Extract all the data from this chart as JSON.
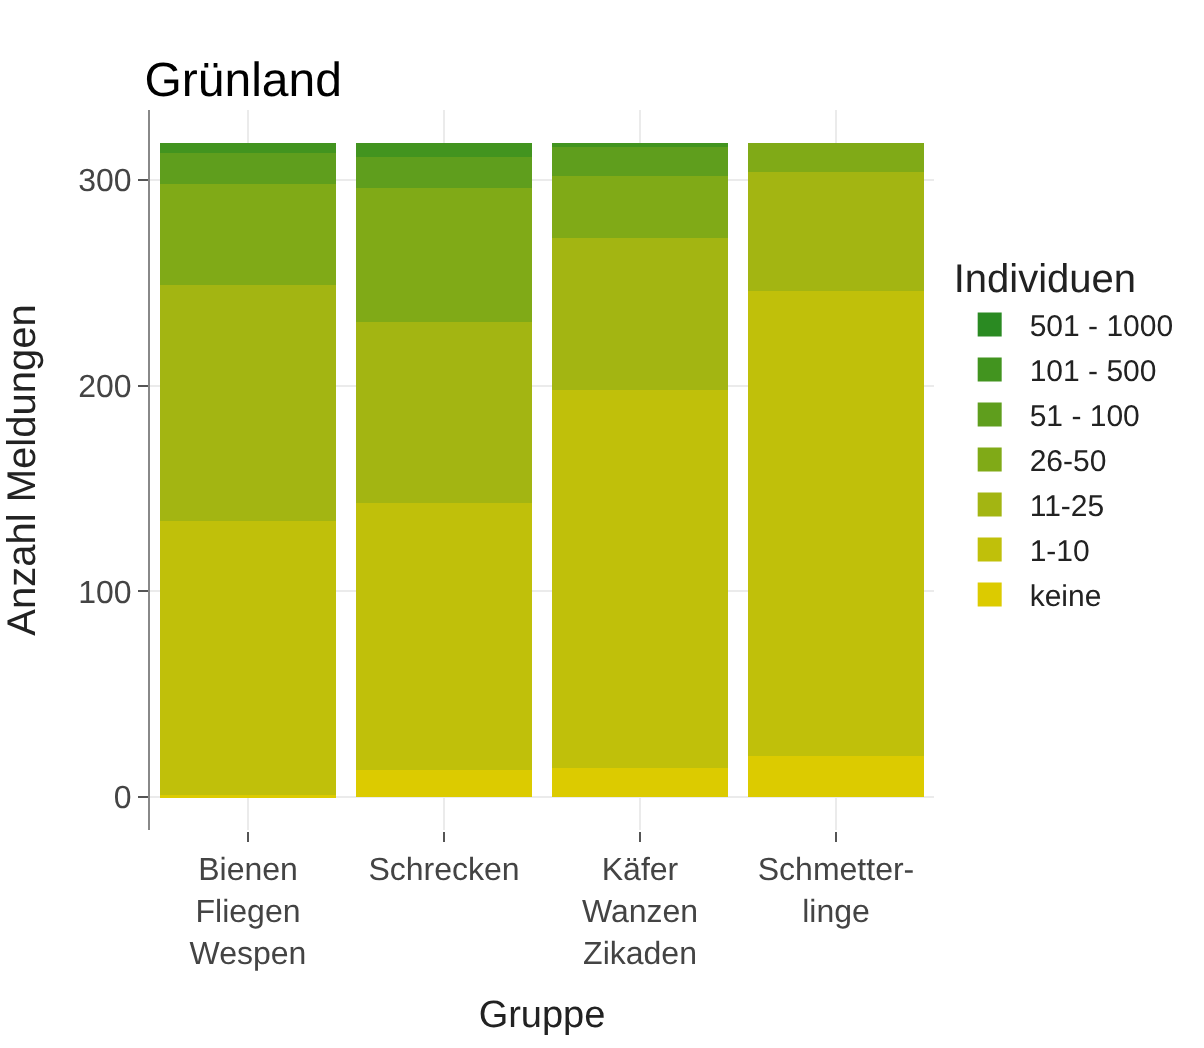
{
  "chart_data": {
    "type": "bar",
    "stacked": true,
    "title": "Grünland",
    "xlabel": "Gruppe",
    "ylabel": "Anzahl Meldungen",
    "legend_title": "Individuen",
    "categories": [
      "Bienen\nFliegen\nWespen",
      "Schrecken",
      "Käfer\nWanzen\nZikaden",
      "Schmetter-\nlinge"
    ],
    "series": [
      {
        "name": "keine",
        "color": "#dccb00",
        "values": [
          1,
          13,
          14,
          20
        ]
      },
      {
        "name": "1-10",
        "color": "#c0c00a",
        "values": [
          133,
          130,
          184,
          226
        ]
      },
      {
        "name": "11-25",
        "color": "#a3b512",
        "values": [
          115,
          88,
          74,
          58
        ]
      },
      {
        "name": "26-50",
        "color": "#80aa17",
        "values": [
          49,
          65,
          30,
          14
        ]
      },
      {
        "name": "51 - 100",
        "color": "#5f9e1d",
        "values": [
          15,
          15,
          14,
          0
        ]
      },
      {
        "name": "101 - 500",
        "color": "#42941f",
        "values": [
          5,
          7,
          2,
          0
        ]
      },
      {
        "name": "501 - 1000",
        "color": "#2a8a22",
        "values": [
          0,
          0,
          0,
          0
        ]
      }
    ],
    "ylim": [
      -16,
      334
    ],
    "yticks": [
      0,
      100,
      200,
      300
    ],
    "grid": true,
    "legend": "right"
  }
}
